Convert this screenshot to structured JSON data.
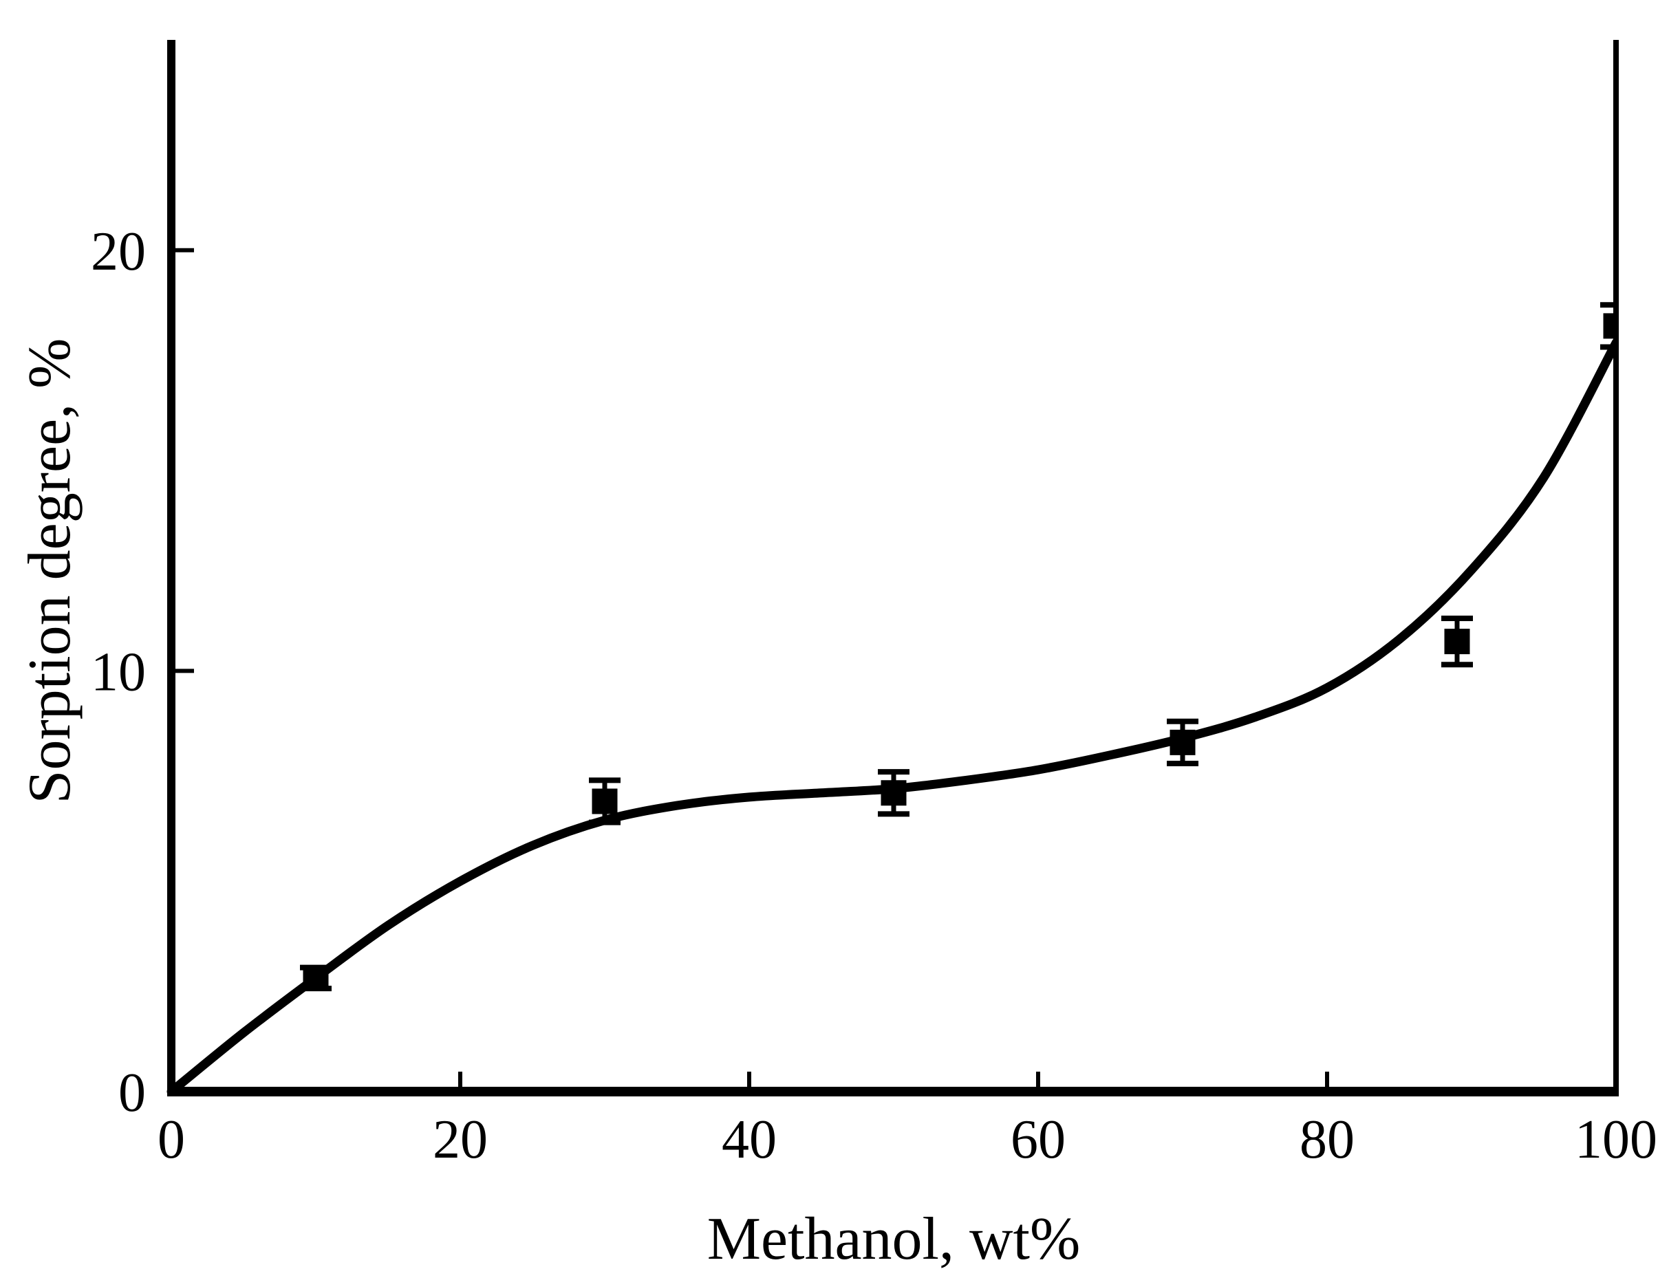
{
  "figure": {
    "background": "#ffffff",
    "ink_color": "#000000"
  },
  "chart_data": {
    "type": "scatter",
    "title": "",
    "xlabel": "Methanol, wt%",
    "ylabel": "Sorption degree, %",
    "xlim": [
      0,
      100
    ],
    "ylim": [
      0,
      25
    ],
    "xticks": [
      0,
      20,
      40,
      60,
      80,
      100
    ],
    "yticks": [
      0,
      10,
      20
    ],
    "grid": false,
    "legend": null,
    "marker": "filled-square",
    "marker_color": "#000000",
    "line_color": "#000000",
    "series": [
      {
        "name": "sorption-degree",
        "points": [
          {
            "x": 10,
            "y": 2.7,
            "yerr": 0.25
          },
          {
            "x": 30,
            "y": 6.9,
            "yerr": 0.5
          },
          {
            "x": 50,
            "y": 7.1,
            "yerr": 0.5
          },
          {
            "x": 70,
            "y": 8.3,
            "yerr": 0.5
          },
          {
            "x": 89,
            "y": 10.7,
            "yerr": 0.55
          },
          {
            "x": 100,
            "y": 18.2,
            "yerr": 0.5
          }
        ]
      }
    ],
    "fit_curve": [
      [
        0,
        0
      ],
      [
        5,
        1.4
      ],
      [
        10,
        2.7
      ],
      [
        15,
        3.95
      ],
      [
        20,
        5.0
      ],
      [
        25,
        5.85
      ],
      [
        30,
        6.45
      ],
      [
        35,
        6.8
      ],
      [
        40,
        7.0
      ],
      [
        45,
        7.1
      ],
      [
        50,
        7.2
      ],
      [
        55,
        7.4
      ],
      [
        60,
        7.65
      ],
      [
        65,
        8.0
      ],
      [
        70,
        8.4
      ],
      [
        75,
        8.9
      ],
      [
        80,
        9.6
      ],
      [
        85,
        10.75
      ],
      [
        90,
        12.4
      ],
      [
        95,
        14.6
      ],
      [
        100,
        17.8
      ]
    ]
  }
}
